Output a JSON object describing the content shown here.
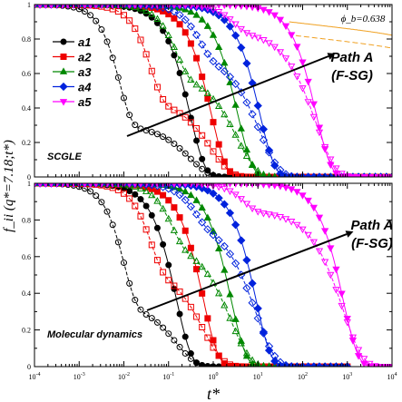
{
  "figure": {
    "ylabel": "f_ii (q*=7.18;t*)",
    "xlabel": "t*",
    "x_tick_exponents": [
      "-4",
      "-3",
      "-2",
      "-1",
      "0",
      "1",
      "2",
      "3",
      "4"
    ],
    "y_ticks": [
      "0",
      "0.2",
      "0.4",
      "0.6",
      "0.8",
      "1"
    ]
  },
  "colors": {
    "a1": "#000000",
    "a2": "#ee0000",
    "a3": "#008800",
    "a4": "#0022dd",
    "a5": "#ff00ff",
    "phib": "#f0a020"
  },
  "chart_data": [
    {
      "type": "line",
      "panel": "top",
      "label": "SCGLE",
      "xscale": "log",
      "xlim": [
        0.0001,
        10000
      ],
      "ylim": [
        0,
        1
      ],
      "legend": [
        "a1",
        "a2",
        "a3",
        "a4",
        "a5"
      ],
      "legend_placement": "upper-left",
      "phi_b_label": "ϕ_b=0.638",
      "path_label": [
        "Path A",
        "(F-SG)"
      ],
      "series": [
        {
          "name": "a1",
          "tau_filled": 0.3,
          "tau_open": 0.008,
          "plateau_open": 0.3,
          "x_start": 0.0001
        },
        {
          "name": "a2",
          "tau_filled": 0.9,
          "tau_open": 0.04,
          "plateau_open": 0.45,
          "x_start": 0.0001
        },
        {
          "name": "a3",
          "tau_filled": 3.5,
          "tau_open": 0.15,
          "plateau_open": 0.6,
          "x_start": 0.0001
        },
        {
          "name": "a4",
          "tau_filled": 11,
          "tau_open": 0.5,
          "plateau_open": 0.72,
          "x_start": 0.0001
        },
        {
          "name": "a5",
          "tau_filled": 200,
          "tau_open": 3,
          "plateau_open": 0.85,
          "x_start": 0.0001
        }
      ],
      "phi_b_series": [
        {
          "style": "solid",
          "plateau": 0.9,
          "tau": 0.7,
          "x_start": 50
        },
        {
          "style": "dashed",
          "plateau": 0.82,
          "tau": 0.5,
          "x_start": 70
        }
      ]
    },
    {
      "type": "line",
      "panel": "bottom",
      "label": "Molecular dynamics",
      "xscale": "log",
      "xlim": [
        0.0001,
        10000
      ],
      "ylim": [
        0,
        1
      ],
      "path_label": [
        "Path A",
        "(F-SG)"
      ],
      "series": [
        {
          "name": "a1",
          "tau_filled": 0.15,
          "tau_open": 0.01,
          "plateau_open": 0.35,
          "x_end": 1000
        },
        {
          "name": "a2",
          "tau_filled": 0.6,
          "tau_open": 0.04,
          "plateau_open": 0.55,
          "x_end": 1000
        },
        {
          "name": "a3",
          "tau_filled": 2.5,
          "tau_open": 0.12,
          "plateau_open": 0.68,
          "x_end": 1000
        },
        {
          "name": "a4",
          "tau_filled": 9,
          "tau_open": 0.4,
          "plateau_open": 0.8,
          "x_end": 1000
        },
        {
          "name": "a5",
          "tau_filled": 800,
          "tau_open": 5,
          "plateau_open": 0.85,
          "x_end": 10000
        }
      ]
    }
  ]
}
